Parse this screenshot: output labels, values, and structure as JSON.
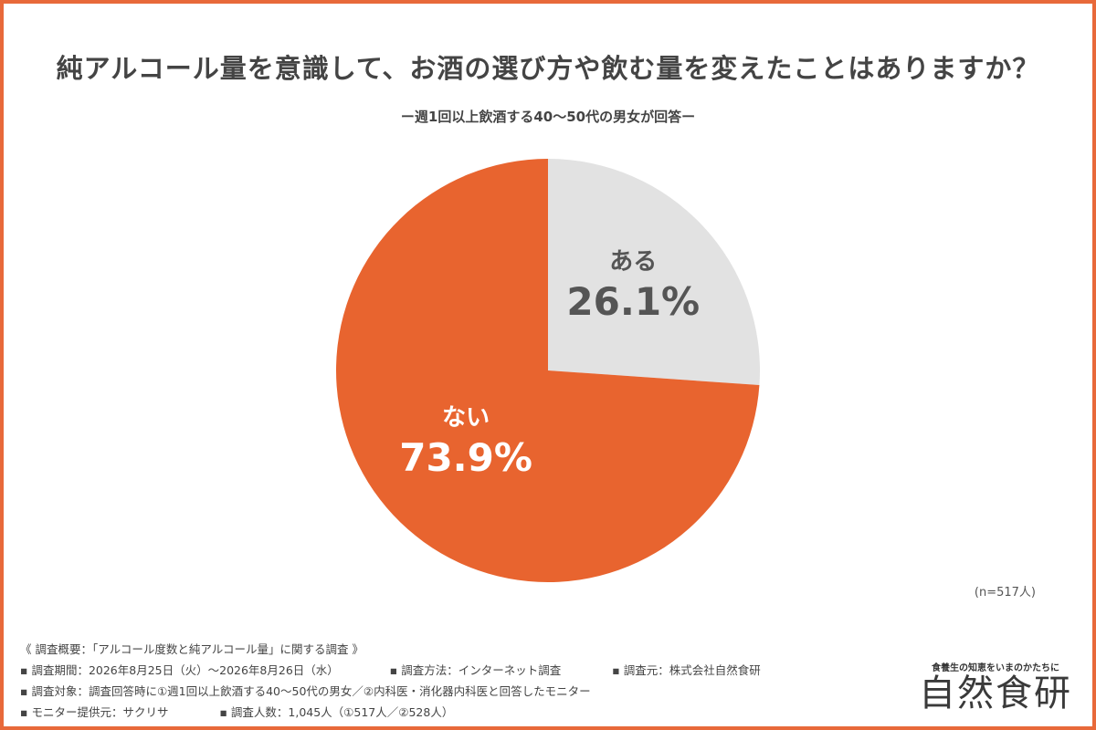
{
  "header": {
    "title": "純アルコール量を意識して、お酒の選び方や飲む量を変えたことはありますか？",
    "subtitle": "ー週1回以上飲酒する40〜50代の男女が回答ー"
  },
  "colors": {
    "frame": "#e8693a",
    "slice_aru": "#e2e2e2",
    "slice_nai": "#e8642f",
    "label_aru": "#555555",
    "label_nai": "#ffffff"
  },
  "chart_data": {
    "type": "pie",
    "title": "純アルコール量を意識して、お酒の選び方や飲む量を変えたことはありますか？",
    "subtitle": "ー週1回以上飲酒する40〜50代の男女が回答ー",
    "start_angle": "12 o'clock, clockwise",
    "slices": [
      {
        "label": "ある",
        "value": 26.1,
        "display": "26.1%"
      },
      {
        "label": "ない",
        "value": 73.9,
        "display": "73.9%"
      }
    ],
    "sample_size": "(n=517人)"
  },
  "footer": {
    "lines": [
      [
        "《 調査概要：「アルコール度数と純アルコール量」に関する調査 》"
      ],
      [
        "▪ 調査期間：2026年8月25日（火）〜2026年8月26日（水）",
        "▪ 調査方法：インターネット調査",
        "▪ 調査元：株式会社自然食研"
      ],
      [
        "▪ 調査対象：調査回答時に①週1回以上飲酒する40〜50代の男女／②内科医・消化器内科医と回答したモニター"
      ],
      [
        "▪ モニター提供元：サクリサ",
        "▪ 調査人数：1,045人（①517人／②528人）"
      ]
    ]
  },
  "logo": {
    "tagline": "食養生の知恵をいまのかたちに",
    "name": "自然食研"
  }
}
